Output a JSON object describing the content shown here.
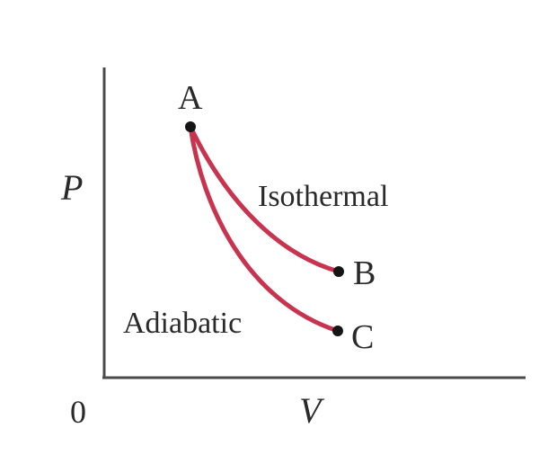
{
  "axes": {
    "y_label": "P",
    "x_label": "V",
    "origin_label": "0"
  },
  "points": {
    "a": "A",
    "b": "B",
    "c": "C"
  },
  "processes": {
    "isothermal": "Isothermal",
    "adiabatic": "Adiabatic"
  },
  "colors": {
    "curve": "#c8334f",
    "axis": "#4a4a4a",
    "point": "#151515"
  }
}
